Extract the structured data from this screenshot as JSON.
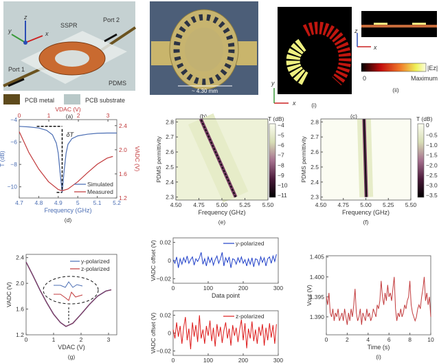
{
  "panel_a": {
    "caption": "(a)",
    "labels": {
      "sspr": "SSPR",
      "port1": "Port 1",
      "port2": "Port 2",
      "pdms": "PDMS",
      "x": "x",
      "y": "y",
      "z": "z"
    },
    "legend": [
      {
        "label": "PCB metal",
        "color": "#5e4a1c"
      },
      {
        "label": "PCB substrate",
        "color": "#b8c8c8"
      }
    ]
  },
  "panel_b": {
    "caption": "(b)",
    "scale_label": "~ 4.30 mm"
  },
  "panel_c": {
    "caption": "(c)",
    "sub_i": "(i)",
    "sub_ii": "(ii)",
    "x": "x",
    "y": "y",
    "z": "z",
    "colorbar_label": "|Ez|",
    "colorbar_min": "0",
    "colorbar_max": "Maximum"
  },
  "colors": {
    "blue": "#4a6db3",
    "red": "#c23a3c",
    "hblue": "#1f3fc8",
    "hred": "#dd1a1a"
  },
  "chart_data": [
    {
      "id": "d",
      "caption": "(d)",
      "type": "line",
      "xlabel": "Frequency (GHz)",
      "ylabel": "T (dB)",
      "y2label": "VADC (V)",
      "x2label": "VDAC (V)",
      "xlim": [
        4.7,
        5.2
      ],
      "ylim": [
        -11,
        -4
      ],
      "y2lim": [
        1.2,
        2.5
      ],
      "x2lim": [
        0,
        3.3
      ],
      "xticks": [
        4.7,
        4.8,
        4.9,
        5.0,
        5.1,
        5.2
      ],
      "yticks": [
        -4,
        -6,
        -8,
        -10
      ],
      "y2ticks": [
        1.2,
        1.6,
        2.0,
        2.4
      ],
      "x2ticks": [
        0,
        1,
        2,
        3
      ],
      "annotation": "δT",
      "series": [
        {
          "name": "Simulated",
          "axis": "left",
          "x": [
            4.7,
            4.75,
            4.8,
            4.84,
            4.87,
            4.89,
            4.9,
            4.91,
            4.92,
            4.93,
            4.94,
            4.95,
            4.97,
            5.0,
            5.05,
            5.1,
            5.15,
            5.2
          ],
          "y": [
            -4.6,
            -4.65,
            -4.75,
            -4.95,
            -5.35,
            -6.1,
            -7.0,
            -8.8,
            -10.5,
            -8.6,
            -7.0,
            -6.2,
            -5.7,
            -5.45,
            -5.3,
            -5.22,
            -5.2,
            -5.2
          ]
        },
        {
          "name": "Measured",
          "axis": "right",
          "x": [
            4.7,
            4.75,
            4.8,
            4.85,
            4.9,
            4.92,
            4.95,
            5.0,
            5.05,
            5.1,
            5.15,
            5.18
          ],
          "y": [
            2.3,
            1.95,
            1.68,
            1.47,
            1.34,
            1.32,
            1.35,
            1.47,
            1.62,
            1.76,
            1.86,
            1.89
          ]
        }
      ],
      "legend": "bottom-right"
    },
    {
      "id": "e",
      "caption": "(e)",
      "type": "heatmap",
      "xlabel": "Frequency (GHz)",
      "ylabel": "PDMS permittivity",
      "colorbar_title": "T (dB)",
      "xlim": [
        4.5,
        5.5
      ],
      "ylim": [
        2.28,
        2.82
      ],
      "xticks": [
        "4.50",
        "4.75",
        "5.00",
        "5.25",
        "5.50"
      ],
      "yticks": [
        "2.3",
        "2.4",
        "2.5",
        "2.6",
        "2.7",
        "2.8"
      ],
      "colorbar_ticks": [
        "-4",
        "-5",
        "-6",
        "-7",
        "-8",
        "-9",
        "-10",
        "-11"
      ],
      "colorbar_range": [
        -11,
        -4
      ],
      "resonance": {
        "permittivity": [
          2.3,
          2.82
        ],
        "frequency_GHz": [
          5.15,
          4.77
        ]
      }
    },
    {
      "id": "f",
      "caption": "(f)",
      "type": "heatmap",
      "xlabel": "Frequency (GHz)",
      "ylabel": "PDMS permittivity",
      "colorbar_title": "T (dB)",
      "xlim": [
        4.5,
        5.5
      ],
      "ylim": [
        2.28,
        2.82
      ],
      "xticks": [
        "4.50",
        "4.75",
        "5.00",
        "5.25",
        "5.50"
      ],
      "yticks": [
        "2.3",
        "2.4",
        "2.5",
        "2.6",
        "2.7",
        "2.8"
      ],
      "colorbar_ticks": [
        "0",
        "-0.5",
        "-1.0",
        "-1.5",
        "-2.0",
        "-2.5",
        "-3.0",
        "-3.5"
      ],
      "colorbar_range": [
        -3.5,
        0
      ],
      "resonance": {
        "permittivity": [
          2.3,
          2.82
        ],
        "frequency_GHz": [
          5.005,
          4.98
        ]
      }
    },
    {
      "id": "g",
      "caption": "(g)",
      "type": "line",
      "xlabel": "VDAC (V)",
      "ylabel": "VADC (V)",
      "xlim": [
        0,
        3.3
      ],
      "ylim": [
        1.2,
        2.45
      ],
      "xticks": [
        0,
        1,
        2,
        3
      ],
      "yticks": [
        "1.2",
        "1.6",
        "2.0",
        "2.4"
      ],
      "legend": "top-right",
      "series": [
        {
          "name": "y-polarized",
          "x": [
            0,
            0.25,
            0.5,
            0.75,
            1.0,
            1.25,
            1.45,
            1.7,
            2.0,
            2.3,
            2.6,
            2.9,
            3.1
          ],
          "y": [
            2.33,
            2.12,
            1.9,
            1.7,
            1.52,
            1.39,
            1.33,
            1.38,
            1.52,
            1.67,
            1.8,
            1.88,
            1.9
          ]
        },
        {
          "name": "z-polarized",
          "x": [
            0,
            0.25,
            0.5,
            0.75,
            1.0,
            1.25,
            1.45,
            1.7,
            2.0,
            2.3,
            2.6,
            2.9,
            3.1
          ],
          "y": [
            2.33,
            2.12,
            1.9,
            1.7,
            1.52,
            1.39,
            1.33,
            1.38,
            1.52,
            1.67,
            1.8,
            1.88,
            1.9
          ]
        }
      ]
    },
    {
      "id": "h1",
      "type": "line",
      "xlabel": "Data point",
      "ylabel": "VADC offset (V)",
      "xlim": [
        0,
        300
      ],
      "ylim": [
        -0.025,
        0.025
      ],
      "xticks": [
        0,
        100,
        200,
        300
      ],
      "yticks": [
        "0.02",
        "0",
        "-0.02"
      ],
      "legend": "top-right",
      "series": [
        {
          "name": "y-polarized",
          "x_step": 5,
          "y": [
            0.001,
            -0.003,
            0.004,
            -0.008,
            0.002,
            -0.004,
            0.003,
            -0.002,
            0.005,
            -0.003,
            0.001,
            0.004,
            -0.005,
            0.002,
            -0.001,
            0.003,
            0.009,
            -0.004,
            0.002,
            -0.006,
            0.004,
            -0.002,
            0.003,
            -0.005,
            0.001,
            0.005,
            -0.003,
            0.002,
            0.009,
            -0.006,
            0.003,
            -0.002,
            0.004,
            -0.008,
            0.002,
            0.001,
            -0.004,
            0.003,
            -0.002,
            0.004,
            -0.003,
            0.001,
            -0.006,
            0.002,
            -0.004,
            0.003,
            -0.007,
            0.002,
            0.001,
            -0.005,
            0.004,
            -0.002,
            0.003,
            -0.006,
            0.002,
            0.004,
            -0.003,
            0.005,
            -0.001,
            0.007
          ]
        }
      ]
    },
    {
      "id": "h2",
      "caption": "(h)",
      "type": "line",
      "xlabel": "Data point",
      "ylabel": "VADC offset (V)",
      "xlim": [
        0,
        300
      ],
      "ylim": [
        -0.025,
        0.025
      ],
      "xticks": [
        0,
        100,
        200,
        300
      ],
      "yticks": [
        "0.02",
        "0",
        "-0.02"
      ],
      "legend": "top-right",
      "series": [
        {
          "name": "z-polarized",
          "x_step": 5,
          "y": [
            0.004,
            -0.006,
            0.012,
            -0.004,
            0.008,
            -0.012,
            0.006,
            0.018,
            -0.008,
            0.005,
            -0.018,
            0.012,
            -0.004,
            0.009,
            -0.01,
            0.02,
            -0.006,
            0.004,
            -0.012,
            0.008,
            -0.003,
            0.014,
            -0.009,
            0.006,
            -0.015,
            0.01,
            -0.004,
            0.007,
            -0.011,
            0.003,
            0.012,
            -0.006,
            0.005,
            -0.014,
            0.009,
            -0.003,
            0.006,
            -0.01,
            0.004,
            0.015,
            -0.008,
            0.011,
            -0.017,
            0.005,
            -0.006,
            0.013,
            -0.009,
            0.004,
            -0.012,
            0.007,
            -0.003,
            0.01,
            -0.014,
            0.006,
            -0.008,
            0.011,
            -0.005,
            0.009,
            -0.012,
            0.01
          ]
        }
      ]
    },
    {
      "id": "i",
      "caption": "(i)",
      "type": "line",
      "xlabel": "Time (s)",
      "ylabel": "Vout (V)",
      "xlim": [
        0,
        10
      ],
      "ylim": [
        1.3855,
        1.4053
      ],
      "xticks": [
        0,
        2,
        4,
        6,
        8,
        10
      ],
      "yticks": [
        "1.390",
        "1.395",
        "1.400",
        "1.405"
      ],
      "series": [
        {
          "x_step": 0.125,
          "y": [
            1.395,
            1.393,
            1.396,
            1.391,
            1.39,
            1.392,
            1.389,
            1.391,
            1.39,
            1.392,
            1.389,
            1.39,
            1.391,
            1.389,
            1.392,
            1.39,
            1.388,
            1.391,
            1.389,
            1.392,
            1.39,
            1.393,
            1.397,
            1.391,
            1.389,
            1.39,
            1.392,
            1.388,
            1.391,
            1.39,
            1.389,
            1.392,
            1.39,
            1.391,
            1.389,
            1.39,
            1.392,
            1.391,
            1.39,
            1.393,
            1.392,
            1.394,
            1.399,
            1.395,
            1.393,
            1.396,
            1.394,
            1.398,
            1.395,
            1.396,
            1.394,
            1.397,
            1.4,
            1.392,
            1.389,
            1.391,
            1.39,
            1.392,
            1.39,
            1.391,
            1.393,
            1.392,
            1.394,
            1.395,
            1.399,
            1.393,
            1.391,
            1.39,
            1.389,
            1.39,
            1.392,
            1.393,
            1.392,
            1.395,
            1.397,
            1.4,
            1.394,
            1.396,
            1.393,
            1.395,
            1.39
          ]
        }
      ]
    }
  ]
}
